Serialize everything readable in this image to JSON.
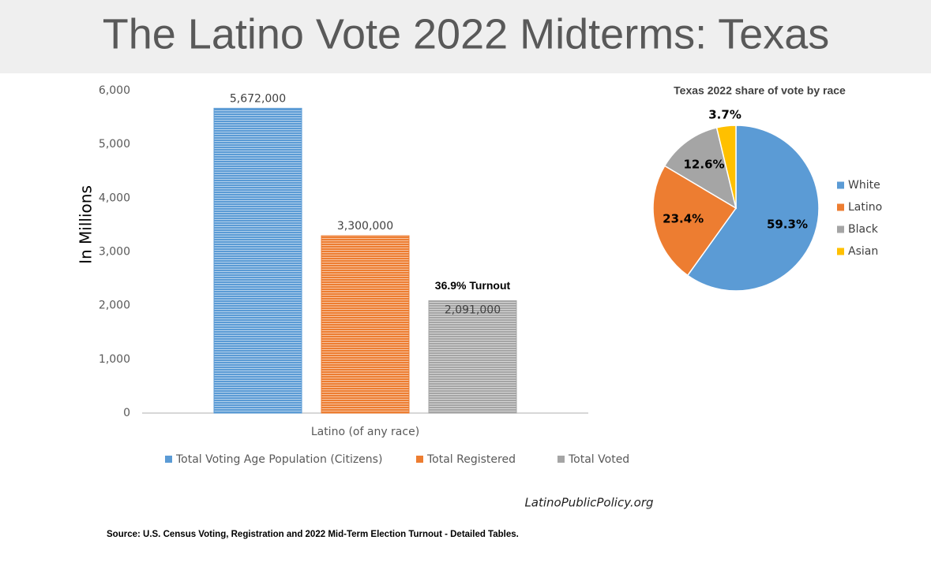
{
  "title": "The Latino Vote 2022 Midterms: Texas",
  "website": "LatinoPublicPolicy.org",
  "source": "Source: U.S. Census Voting, Registration and 2022 Mid-Term Election Turnout - Detailed Tables.",
  "chart_data": [
    {
      "type": "bar",
      "y_label": "In Millions",
      "categories": [
        "Latino (of any race)"
      ],
      "series": [
        {
          "name": "Total Voting Age Population (Citizens)",
          "color": "#5b9bd5",
          "values": [
            5672
          ],
          "value_labels": [
            "5,672,000"
          ]
        },
        {
          "name": "Total Registered",
          "color": "#ed7d31",
          "values": [
            3300
          ],
          "value_labels": [
            "3,300,000"
          ]
        },
        {
          "name": "Total Voted",
          "color": "#a5a5a5",
          "values": [
            2091
          ],
          "value_labels": [
            "2,091,000"
          ]
        }
      ],
      "annotation": "36.9% Turnout",
      "ylim": [
        0,
        6000
      ],
      "yticks": [
        0,
        {
          "value": 1000,
          "label": "1,000"
        },
        {
          "value": 2000,
          "label": "2,000"
        },
        {
          "value": 3000,
          "label": "3,000"
        },
        {
          "value": 4000,
          "label": "4,000"
        },
        {
          "value": 5000,
          "label": "5,000"
        },
        {
          "value": 6000,
          "label": "6,000"
        }
      ],
      "legend": "bottom"
    },
    {
      "type": "pie",
      "title": "Texas 2022 share of vote by race",
      "categories": [
        "White",
        "Latino",
        "Black",
        "Asian"
      ],
      "values": [
        59.3,
        23.4,
        12.6,
        3.7
      ],
      "value_labels": [
        "59.3%",
        "23.4%",
        "12.6%",
        "3.7%"
      ],
      "colors": [
        "#5b9bd5",
        "#ed7d31",
        "#a5a5a5",
        "#ffc000"
      ],
      "legend": "right"
    }
  ]
}
